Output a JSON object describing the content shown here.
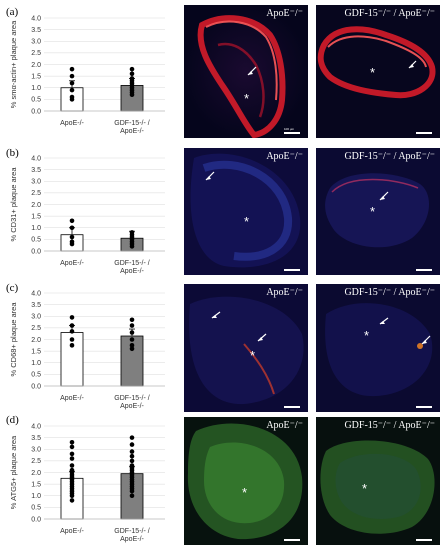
{
  "panels": [
    {
      "letter": "(a)",
      "left_label": "ApoE⁻/⁻",
      "right_label": "GDF-15⁻/⁻ / ApoE⁻/⁻",
      "stain": "red",
      "scale_bar": "100 μm"
    },
    {
      "letter": "(b)",
      "left_label": "ApoE⁻/⁻",
      "right_label": "GDF-15⁻/⁻ / ApoE⁻/⁻",
      "stain": "blue",
      "scale_bar": "100 μm"
    },
    {
      "letter": "(c)",
      "left_label": "ApoE⁻/⁻",
      "right_label": "GDF-15⁻/⁻ / ApoE⁻/⁻",
      "stain": "blue",
      "scale_bar": "100 μm"
    },
    {
      "letter": "(d)",
      "left_label": "ApoE⁻/⁻",
      "right_label": "GDF-15⁻/⁻ / ApoE⁻/⁻",
      "stain": "green",
      "scale_bar": "100 μm"
    }
  ],
  "chart_data": [
    {
      "type": "bar",
      "ylabel": "% smα-actin+ plaque area",
      "ylim": [
        0,
        4.0
      ],
      "yticks": [
        "0.0",
        "0.5",
        "1.0",
        "1.5",
        "2.0",
        "2.5",
        "3.0",
        "3.5",
        "4.0"
      ],
      "categories": [
        "ApoE-/-",
        "GDF-15-/- / ApoE-/-"
      ],
      "values": [
        1.0,
        1.1
      ],
      "bar_colors": [
        "#ffffff",
        "#7f7f7f"
      ],
      "points": [
        [
          1.8,
          1.5,
          1.2,
          0.9,
          0.6,
          0.5
        ],
        [
          1.8,
          1.6,
          1.4,
          1.3,
          1.2,
          1.1,
          1.0,
          0.9,
          0.8,
          0.7
        ]
      ],
      "grid": true
    },
    {
      "type": "bar",
      "ylabel": "% CD31+ plaque area",
      "ylim": [
        0,
        4.0
      ],
      "yticks": [
        "0.0",
        "0.5",
        "1.0",
        "1.5",
        "2.0",
        "2.5",
        "3.0",
        "3.5",
        "4.0"
      ],
      "categories": [
        "ApoE-/-",
        "GDF-15-/- / ApoE-/-"
      ],
      "values": [
        0.7,
        0.55
      ],
      "bar_colors": [
        "#ffffff",
        "#7f7f7f"
      ],
      "points": [
        [
          1.3,
          1.0,
          0.6,
          0.4,
          0.3
        ],
        [
          0.8,
          0.7,
          0.6,
          0.5,
          0.4,
          0.3,
          0.2
        ]
      ],
      "grid": true
    },
    {
      "type": "bar",
      "ylabel": "% CD68+ plaque area",
      "ylim": [
        0,
        4.0
      ],
      "yticks": [
        "0.0",
        "0.5",
        "1.0",
        "1.5",
        "2.0",
        "2.5",
        "3.0",
        "3.5",
        "4.0"
      ],
      "categories": [
        "ApoE-/-",
        "GDF-15-/- / ApoE-/-"
      ],
      "values": [
        2.3,
        2.15
      ],
      "bar_colors": [
        "#ffffff",
        "#7f7f7f"
      ],
      "points": [
        [
          2.95,
          2.6,
          2.35,
          2.0,
          1.75
        ],
        [
          2.85,
          2.6,
          2.3,
          2.0,
          1.75,
          1.6
        ]
      ],
      "grid": true
    },
    {
      "type": "bar",
      "ylabel": "% ATG5+ plaque area",
      "ylim": [
        0,
        4.0
      ],
      "yticks": [
        "0.0",
        "0.5",
        "1.0",
        "1.5",
        "2.0",
        "2.5",
        "3.0",
        "3.5",
        "4.0"
      ],
      "categories": [
        "ApoE-/-",
        "GDF-15-/- / ApoE-/-"
      ],
      "values": [
        1.75,
        1.95
      ],
      "bar_colors": [
        "#ffffff",
        "#7f7f7f"
      ],
      "points": [
        [
          3.3,
          3.1,
          2.8,
          2.6,
          2.3,
          2.1,
          2.0,
          1.9,
          1.8,
          1.7,
          1.6,
          1.5,
          1.4,
          1.3,
          1.2,
          1.1,
          1.0,
          0.8
        ],
        [
          3.5,
          3.2,
          2.9,
          2.7,
          2.5,
          2.3,
          2.2,
          2.1,
          2.0,
          1.9,
          1.8,
          1.7,
          1.6,
          1.5,
          1.4,
          1.3,
          1.2,
          1.0
        ]
      ],
      "grid": true
    }
  ]
}
